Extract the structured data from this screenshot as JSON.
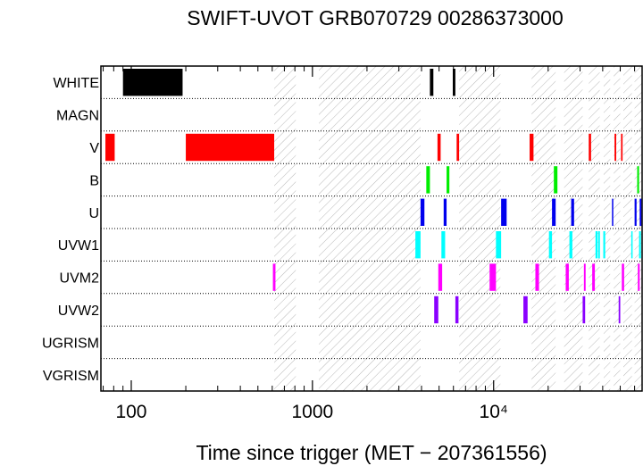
{
  "chart_data": {
    "type": "bar",
    "title": "SWIFT-UVOT GRB070729 00286373000",
    "xlabel": "Time since trigger (MET − 207361556)",
    "ylabel": "",
    "x_scale": "log",
    "xlim": [
      68,
      66000
    ],
    "x_ticks": [
      {
        "value": 100,
        "label": "100"
      },
      {
        "value": 1000,
        "label": "1000"
      },
      {
        "value": 10000,
        "label": "10⁴"
      }
    ],
    "categories": [
      "WHITE",
      "MAGN",
      "V",
      "B",
      "U",
      "UVW1",
      "UVM2",
      "UVW2",
      "UGRISM",
      "VGRISM"
    ],
    "grid": "dotted horizontal row separators",
    "gaps_hatched": [
      [
        615,
        810
      ],
      [
        1085,
        3950
      ],
      [
        6450,
        10900
      ],
      [
        16200,
        22000
      ],
      [
        24500,
        31000
      ],
      [
        33500,
        38500
      ],
      [
        40500,
        44000
      ],
      [
        46000,
        50000
      ],
      [
        52000,
        58000
      ],
      [
        60000,
        66000
      ]
    ],
    "series": [
      {
        "filter": "WHITE",
        "color": "#000000",
        "intervals": [
          [
            90,
            192
          ],
          [
            4450,
            4650
          ],
          [
            5950,
            6150
          ]
        ]
      },
      {
        "filter": "MAGN",
        "color": "#000000",
        "intervals": []
      },
      {
        "filter": "V",
        "color": "#ff0000",
        "intervals": [
          [
            72,
            81
          ],
          [
            200,
            615
          ],
          [
            4900,
            5100
          ],
          [
            6250,
            6450
          ],
          [
            15800,
            16600
          ],
          [
            33500,
            34500
          ],
          [
            46500,
            47500
          ],
          [
            50500,
            51500
          ]
        ]
      },
      {
        "filter": "B",
        "color": "#00ee00",
        "intervals": [
          [
            4250,
            4450
          ],
          [
            5500,
            5700
          ],
          [
            21500,
            22500
          ],
          [
            62000,
            63500
          ]
        ]
      },
      {
        "filter": "U",
        "color": "#0000ee",
        "intervals": [
          [
            3950,
            4150
          ],
          [
            5300,
            5500
          ],
          [
            11000,
            11800
          ],
          [
            21000,
            22000
          ],
          [
            26800,
            27800
          ],
          [
            45000,
            45400
          ],
          [
            60000,
            61500
          ],
          [
            64000,
            65500
          ]
        ]
      },
      {
        "filter": "UVW1",
        "color": "#00ffff",
        "intervals": [
          [
            3700,
            3950
          ],
          [
            5150,
            5400
          ],
          [
            10300,
            11000
          ],
          [
            20200,
            21000
          ],
          [
            26200,
            27200
          ],
          [
            36500,
            37500
          ],
          [
            37800,
            38600
          ],
          [
            40300,
            41300
          ],
          [
            57500,
            58500
          ],
          [
            63500,
            65000
          ]
        ]
      },
      {
        "filter": "UVM2",
        "color": "#ff00ff",
        "intervals": [
          [
            605,
            625
          ],
          [
            4950,
            5200
          ],
          [
            9500,
            10300
          ],
          [
            17000,
            17800
          ],
          [
            25000,
            26000
          ],
          [
            31500,
            32200
          ],
          [
            35000,
            36200
          ],
          [
            51000,
            52500
          ],
          [
            62500,
            64000
          ]
        ]
      },
      {
        "filter": "UVW2",
        "color": "#8a00ff",
        "intervals": [
          [
            4700,
            4950
          ],
          [
            6150,
            6400
          ],
          [
            14600,
            15400
          ],
          [
            31000,
            32000
          ],
          [
            49000,
            50000
          ]
        ]
      },
      {
        "filter": "UGRISM",
        "color": "#000000",
        "intervals": []
      },
      {
        "filter": "VGRISM",
        "color": "#000000",
        "intervals": []
      }
    ]
  }
}
